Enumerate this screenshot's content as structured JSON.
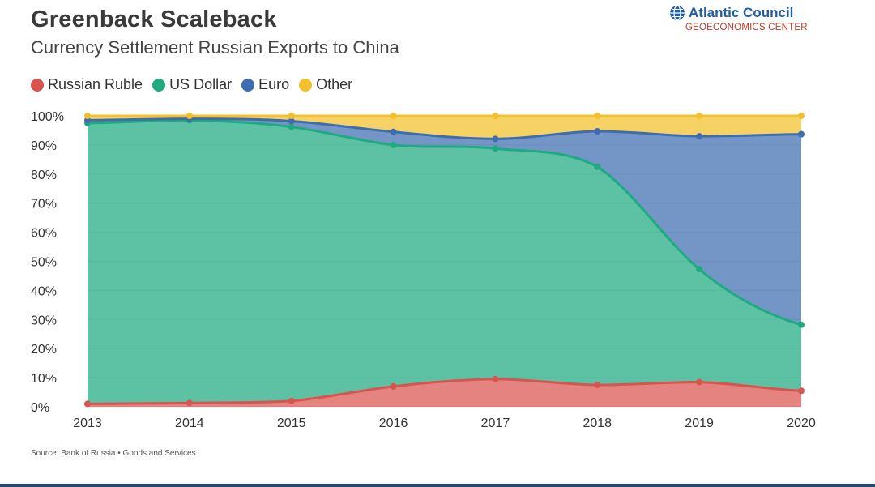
{
  "header": {
    "title": "Greenback Scaleback",
    "subtitle": "Currency Settlement Russian Exports to China"
  },
  "brand": {
    "name": "Atlantic Council",
    "sub": "GEOECONOMICS CENTER",
    "icon": "globe-icon"
  },
  "footer": {
    "source": "Source: Bank of Russia • Goods and Services"
  },
  "colors": {
    "ruble": "#d9534f",
    "dollar": "#1fab7f",
    "euro": "#3d6db0",
    "other": "#f2c02a"
  },
  "chart_data": {
    "type": "area",
    "stacked": true,
    "x": [
      "2013",
      "2014",
      "2015",
      "2016",
      "2017",
      "2018",
      "2019",
      "2020"
    ],
    "ylim": [
      0,
      100
    ],
    "y_ticks": [
      "0%",
      "10%",
      "20%",
      "30%",
      "40%",
      "50%",
      "60%",
      "70%",
      "80%",
      "90%",
      "100%"
    ],
    "legend_position": "top-left",
    "grid": true,
    "series": [
      {
        "name": "Russian Ruble",
        "key": "ruble",
        "values": [
          1,
          1.3,
          2,
          7,
          9.5,
          7.5,
          8.5,
          5.5
        ]
      },
      {
        "name": "US Dollar",
        "key": "dollar",
        "values": [
          96.5,
          97.2,
          94.2,
          83,
          79.3,
          75,
          38.8,
          22.7
        ]
      },
      {
        "name": "Euro",
        "key": "euro",
        "values": [
          1,
          0.5,
          2,
          4.5,
          3.3,
          12.2,
          45.7,
          65.5
        ]
      },
      {
        "name": "Other",
        "key": "other",
        "values": [
          1.5,
          1,
          1.8,
          5.5,
          7.9,
          5.3,
          7,
          6.3
        ]
      }
    ]
  }
}
